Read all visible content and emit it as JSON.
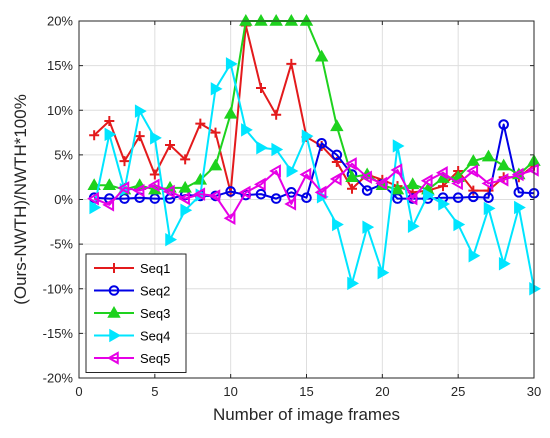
{
  "chart_data": {
    "type": "line",
    "title": "",
    "xlabel": "Number of image frames",
    "ylabel": "(Ours-NWTH)/NWTH*100%",
    "xlim": [
      0,
      30
    ],
    "ylim": [
      -20,
      20
    ],
    "xticks": [
      0,
      5,
      10,
      15,
      20,
      25,
      30
    ],
    "yticks": [
      -20,
      -15,
      -10,
      -5,
      0,
      5,
      10,
      15,
      20
    ],
    "ytick_labels": [
      "-20%",
      "-15%",
      "-10%",
      "-5%",
      "0%",
      "5%",
      "10%",
      "15%",
      "20%"
    ],
    "grid": true,
    "legend_position": "bottom-left",
    "x": [
      1,
      2,
      3,
      4,
      5,
      6,
      7,
      8,
      9,
      10,
      11,
      12,
      13,
      14,
      15,
      16,
      17,
      18,
      19,
      20,
      21,
      22,
      23,
      24,
      25,
      26,
      27,
      28,
      29,
      30
    ],
    "series": [
      {
        "name": "Seq1",
        "color": "#e31a1c",
        "marker": "plus",
        "values": [
          7.2,
          8.8,
          4.3,
          7.1,
          2.8,
          6.1,
          4.5,
          8.5,
          7.5,
          0.8,
          19.5,
          12.5,
          9.5,
          15.2,
          7.0,
          6.0,
          4.2,
          1.2,
          2.8,
          2.2,
          1.5,
          0.8,
          1.0,
          1.5,
          3.2,
          1.0,
          1.0,
          2.5,
          2.5,
          3.8
        ]
      },
      {
        "name": "Seq2",
        "color": "#0000e6",
        "marker": "circle",
        "values": [
          0.2,
          0.1,
          0.1,
          0.2,
          0.1,
          0.1,
          0.5,
          0.4,
          0.4,
          0.9,
          0.5,
          0.6,
          0.1,
          0.8,
          0.2,
          6.3,
          5.0,
          2.8,
          1.0,
          1.7,
          0.1,
          0.1,
          0.1,
          0.2,
          0.2,
          0.3,
          0.2,
          8.4,
          0.8,
          0.7
        ]
      },
      {
        "name": "Seq3",
        "color": "#1ed21e",
        "marker": "triangle-up",
        "values": [
          1.6,
          1.6,
          1.1,
          1.6,
          1.1,
          1.3,
          1.3,
          2.2,
          3.8,
          9.6,
          20.0,
          20.0,
          20.0,
          20.0,
          20.0,
          16.0,
          8.2,
          2.5,
          2.8,
          1.6,
          1.1,
          1.7,
          1.1,
          2.4,
          2.5,
          4.3,
          4.8,
          3.8,
          2.8,
          4.3
        ]
      },
      {
        "name": "Seq4",
        "color": "#00e5ff",
        "marker": "triangle-right",
        "values": [
          -0.9,
          7.3,
          1.1,
          9.9,
          6.9,
          -4.5,
          -1.2,
          0.5,
          12.4,
          15.2,
          7.8,
          5.8,
          5.6,
          3.2,
          7.1,
          0.3,
          -2.8,
          -9.4,
          -3.1,
          -8.2,
          6.0,
          -3.0,
          0.5,
          -0.5,
          -2.8,
          -6.3,
          -1.0,
          -7.2,
          -0.9,
          -10.0
        ]
      },
      {
        "name": "Seq5",
        "color": "#e600e6",
        "marker": "triangle-left",
        "values": [
          0.1,
          -0.6,
          1.3,
          1.0,
          1.6,
          0.9,
          0.1,
          0.6,
          0.4,
          -2.1,
          0.8,
          1.7,
          3.2,
          -0.5,
          2.8,
          0.8,
          2.3,
          4.0,
          2.5,
          1.8,
          3.3,
          0.1,
          2.1,
          3.0,
          1.8,
          3.2,
          1.8,
          2.2,
          2.8,
          3.3
        ]
      }
    ]
  }
}
